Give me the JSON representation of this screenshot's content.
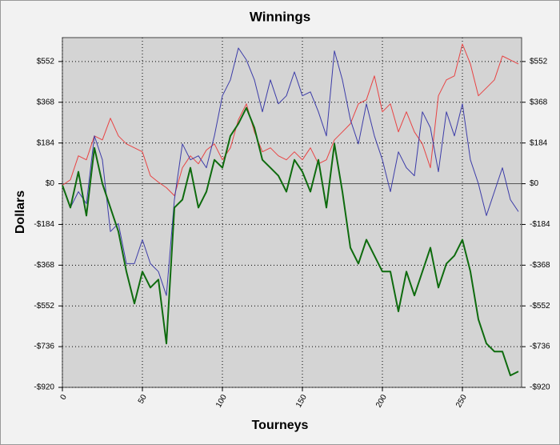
{
  "chart_data": {
    "type": "line",
    "title": "Winnings",
    "xlabel": "Tourneys",
    "ylabel": "Dollars",
    "x": [
      0,
      5,
      10,
      15,
      20,
      25,
      30,
      35,
      40,
      45,
      50,
      55,
      60,
      65,
      70,
      75,
      80,
      85,
      90,
      95,
      100,
      105,
      110,
      115,
      120,
      125,
      130,
      135,
      140,
      145,
      150,
      155,
      160,
      165,
      170,
      175,
      180,
      185,
      190,
      195,
      200,
      205,
      210,
      215,
      220,
      225,
      230,
      235,
      240,
      245,
      250,
      255,
      260,
      265,
      270,
      275,
      280,
      285
    ],
    "series": [
      {
        "color": "#e84343",
        "values": [
          -7,
          18,
          126,
          108,
          216,
          198,
          296,
          216,
          180,
          162,
          144,
          36,
          7,
          -18,
          -54,
          72,
          126,
          90,
          152,
          180,
          108,
          162,
          289,
          361,
          234,
          144,
          162,
          126,
          108,
          144,
          108,
          162,
          90,
          108,
          198,
          234,
          271,
          361,
          379,
          487,
          325,
          361,
          234,
          325,
          234,
          180,
          72,
          397,
          469,
          487,
          631,
          541,
          397,
          433,
          469,
          577,
          559,
          541
        ]
      },
      {
        "color": "#3c3ca8",
        "values": [
          -7,
          -108,
          -36,
          -90,
          216,
          108,
          -216,
          -180,
          -361,
          -361,
          -253,
          -361,
          -397,
          -505,
          -72,
          180,
          108,
          126,
          72,
          216,
          397,
          469,
          613,
          559,
          469,
          325,
          469,
          361,
          397,
          505,
          397,
          415,
          325,
          216,
          600,
          469,
          289,
          180,
          361,
          216,
          108,
          -36,
          144,
          72,
          36,
          325,
          253,
          54,
          325,
          216,
          361,
          108,
          0,
          -144,
          -36,
          72,
          -72,
          -126
        ]
      },
      {
        "color": "#0e6b0e",
        "values": [
          -7,
          -108,
          54,
          -144,
          162,
          0,
          -108,
          -216,
          -397,
          -541,
          -397,
          -469,
          -433,
          -722,
          -108,
          -72,
          72,
          -108,
          -36,
          108,
          72,
          216,
          271,
          343,
          253,
          108,
          72,
          36,
          -36,
          108,
          54,
          -36,
          108,
          -108,
          180,
          -36,
          -289,
          -361,
          -253,
          -325,
          -397,
          -397,
          -577,
          -397,
          -505,
          -397,
          -289,
          -469,
          -361,
          -325,
          -253,
          -397,
          -613,
          -722,
          -758,
          -758,
          -866,
          -848
        ]
      }
    ],
    "xlim": [
      0,
      287
    ],
    "xticks": [
      0,
      50,
      100,
      150,
      200,
      250
    ],
    "ylim": [
      -920,
      660
    ],
    "yticks": [
      {
        "value": -920,
        "label": "-$920"
      },
      {
        "value": -736,
        "label": "-$736"
      },
      {
        "value": -552,
        "label": "-$552"
      },
      {
        "value": -368,
        "label": "-$368"
      },
      {
        "value": -184,
        "label": "-$184"
      },
      {
        "value": 0,
        "label": "$0"
      },
      {
        "value": 184,
        "label": "$184"
      },
      {
        "value": 368,
        "label": "$368"
      },
      {
        "value": 552,
        "label": "$552"
      }
    ],
    "grid": true
  }
}
